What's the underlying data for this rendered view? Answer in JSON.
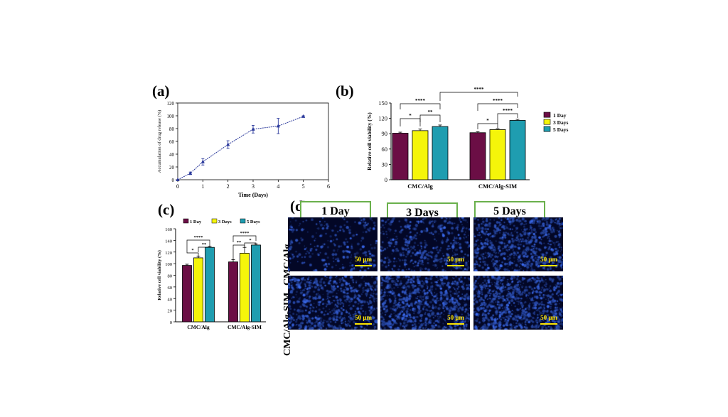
{
  "panels": {
    "a": "(a)",
    "b": "(b)",
    "c": "(c)",
    "d": "(d)"
  },
  "colors": {
    "day1": "#6b0e45",
    "day3": "#f5f50a",
    "day5": "#1f9db0",
    "line": "#2c3a9c",
    "scale": "#ffe600",
    "box_border": "#6ab04c",
    "micro_bg": "#030726"
  },
  "chart_data": [
    {
      "id": "a",
      "type": "line",
      "xlabel": "Time (Days)",
      "ylabel": "Accumulation of drug release (%)",
      "xlim": [
        0,
        6
      ],
      "ylim": [
        0,
        120
      ],
      "xticks": [
        "0",
        "1",
        "2",
        "3",
        "4",
        "5",
        "6"
      ],
      "yticks": [
        "0",
        "20",
        "40",
        "60",
        "80",
        "100",
        "120"
      ],
      "x": [
        0,
        0.5,
        1,
        2,
        3,
        4,
        5
      ],
      "y": [
        0,
        10,
        28,
        55,
        79,
        84,
        99
      ],
      "err": [
        0,
        2,
        5,
        6,
        6,
        12,
        1
      ]
    },
    {
      "id": "b",
      "type": "bar",
      "ylabel": "Relative cell viability (%)",
      "ylim": [
        0,
        150
      ],
      "yticks": [
        "0",
        "30",
        "60",
        "90",
        "120",
        "150"
      ],
      "categories": [
        "CMC/Alg",
        "CMC/Alg-SIM"
      ],
      "series": [
        {
          "name": "1 Day",
          "values": [
            91,
            92
          ],
          "err": [
            2,
            2
          ]
        },
        {
          "name": "3 Days",
          "values": [
            96,
            98
          ],
          "err": [
            3,
            2
          ]
        },
        {
          "name": "5 Days",
          "values": [
            104,
            116
          ],
          "err": [
            3,
            2
          ]
        }
      ],
      "sig": [
        "*",
        "**",
        "****",
        "****",
        "****",
        "*",
        "****"
      ]
    },
    {
      "id": "c",
      "type": "bar",
      "ylabel": "Relative cell viability (%)",
      "ylim": [
        0,
        160
      ],
      "yticks": [
        "0",
        "20",
        "40",
        "60",
        "80",
        "100",
        "120",
        "140",
        "160"
      ],
      "categories": [
        "CMC/Alg",
        "CMC/Alg-SIM"
      ],
      "series": [
        {
          "name": "1 Day",
          "values": [
            97,
            103
          ],
          "err": [
            2,
            4
          ]
        },
        {
          "name": "3 Days",
          "values": [
            110,
            118
          ],
          "err": [
            3,
            10
          ]
        },
        {
          "name": "5 Days",
          "values": [
            128,
            132
          ],
          "err": [
            2,
            2
          ]
        }
      ],
      "sig": [
        "*",
        "****",
        "**",
        "**",
        "****",
        "*"
      ]
    }
  ],
  "microscopy": {
    "columns": [
      "1 Day",
      "3 Days",
      "5 Days"
    ],
    "rows": [
      "CMC/Alg",
      "CMC/Alg-SIM"
    ],
    "scale": "50 μm",
    "density": [
      [
        0.25,
        0.45,
        0.8
      ],
      [
        0.7,
        0.9,
        0.95
      ]
    ]
  }
}
